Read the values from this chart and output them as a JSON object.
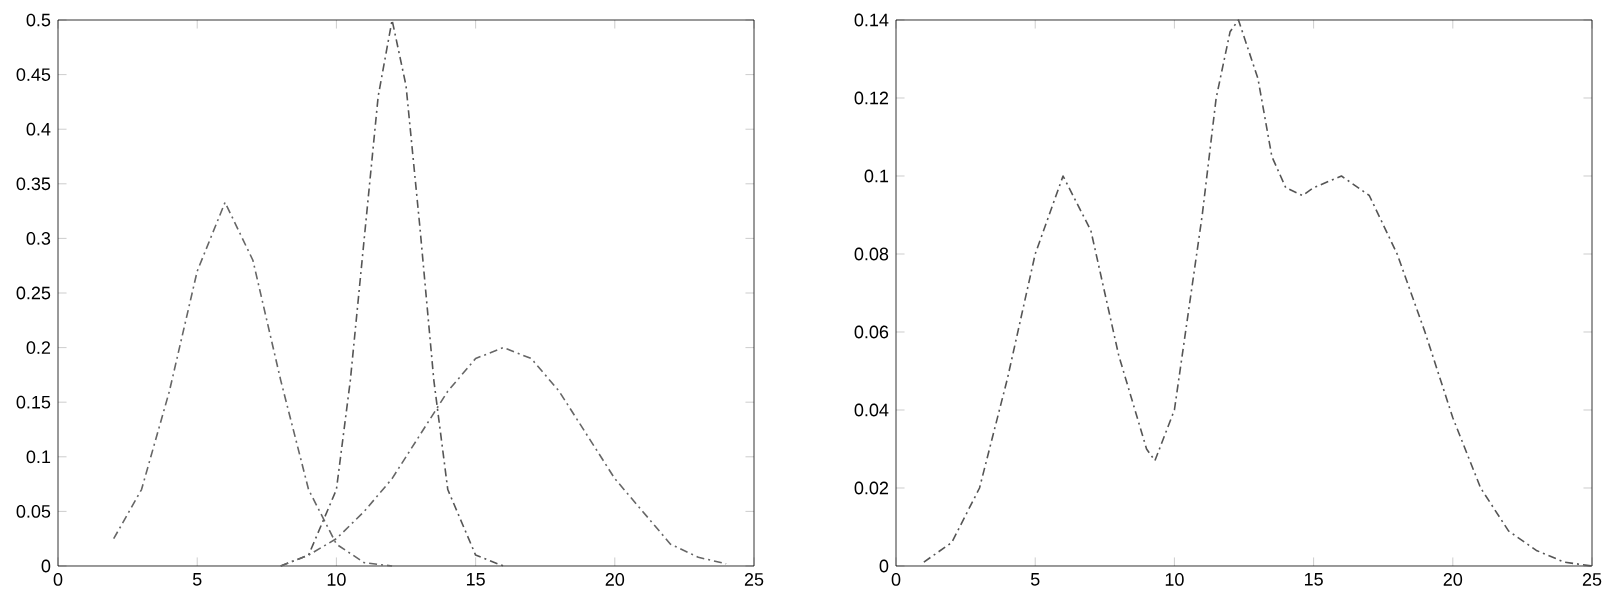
{
  "chart_data": [
    {
      "type": "line",
      "xlim": [
        0,
        25
      ],
      "ylim": [
        0,
        0.5
      ],
      "xticks": [
        0,
        5,
        10,
        15,
        20,
        25
      ],
      "yticks": [
        0,
        0.05,
        0.1,
        0.15,
        0.2,
        0.25,
        0.3,
        0.35,
        0.4,
        0.45,
        0.5
      ],
      "line_style": "dashed",
      "marker": "none",
      "grid": false,
      "series": [
        {
          "color": "#666666",
          "x": [
            2,
            3,
            4,
            5,
            6,
            7,
            8,
            9,
            10,
            11,
            12
          ],
          "values": [
            0.025,
            0.07,
            0.16,
            0.27,
            0.333,
            0.28,
            0.17,
            0.07,
            0.02,
            0.003,
            0
          ]
        },
        {
          "color": "#555555",
          "x": [
            8,
            9,
            10,
            10.5,
            11,
            11.5,
            12,
            12.5,
            13,
            13.5,
            14,
            15,
            16
          ],
          "values": [
            0,
            0.01,
            0.07,
            0.17,
            0.3,
            0.43,
            0.5,
            0.44,
            0.31,
            0.17,
            0.07,
            0.01,
            0
          ]
        },
        {
          "color": "#666666",
          "x": [
            8,
            9,
            10,
            11,
            12,
            13,
            14,
            15,
            16,
            17,
            18,
            19,
            20,
            21,
            22,
            23,
            24
          ],
          "values": [
            0,
            0.01,
            0.025,
            0.05,
            0.08,
            0.12,
            0.16,
            0.19,
            0.2,
            0.19,
            0.16,
            0.12,
            0.08,
            0.05,
            0.02,
            0.008,
            0.002
          ]
        }
      ]
    },
    {
      "type": "line",
      "xlim": [
        0,
        25
      ],
      "ylim": [
        0,
        0.14
      ],
      "xticks": [
        0,
        5,
        10,
        15,
        20,
        25
      ],
      "yticks": [
        0,
        0.02,
        0.04,
        0.06,
        0.08,
        0.1,
        0.12,
        0.14
      ],
      "line_style": "dashed",
      "marker": "none",
      "grid": false,
      "series": [
        {
          "color": "#555555",
          "x": [
            1,
            2,
            3,
            4,
            5,
            6,
            7,
            8,
            9,
            9.3,
            10,
            11,
            11.5,
            12,
            12.3,
            13,
            13.5,
            14,
            14.6,
            15,
            16,
            17,
            18,
            19,
            20,
            21,
            22,
            23,
            24,
            25
          ],
          "values": [
            0.001,
            0.006,
            0.02,
            0.048,
            0.08,
            0.1,
            0.086,
            0.054,
            0.03,
            0.027,
            0.04,
            0.09,
            0.12,
            0.137,
            0.14,
            0.125,
            0.105,
            0.097,
            0.095,
            0.097,
            0.1,
            0.095,
            0.08,
            0.06,
            0.038,
            0.02,
            0.009,
            0.004,
            0.001,
            0
          ]
        }
      ]
    }
  ]
}
